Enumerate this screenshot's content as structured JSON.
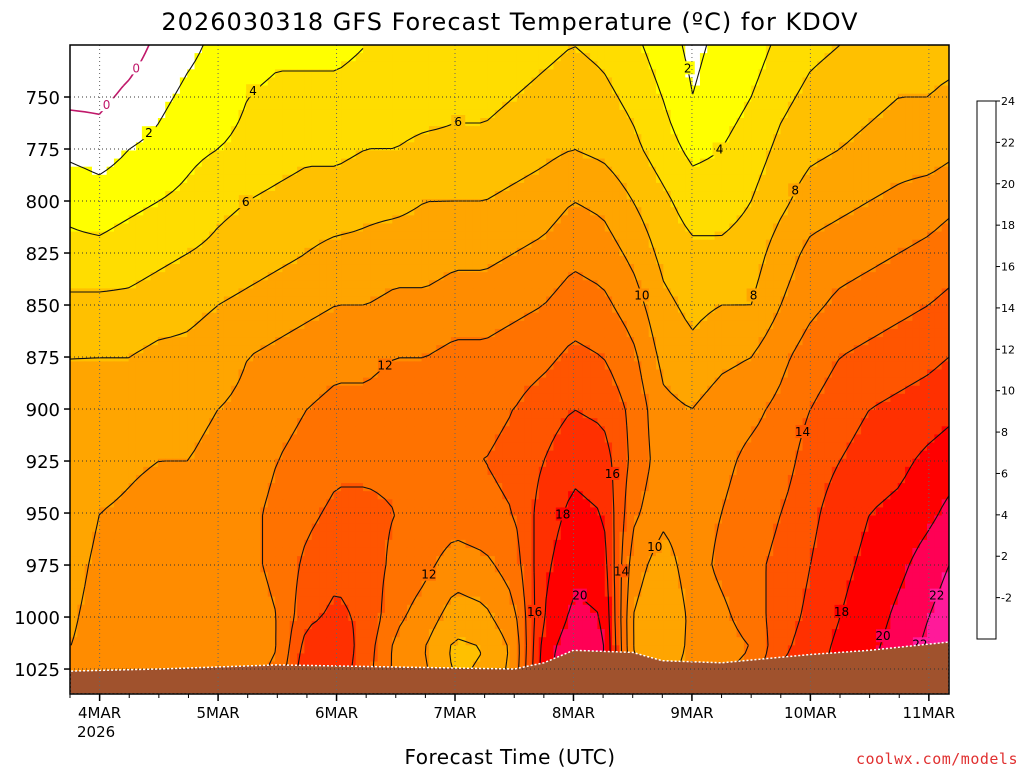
{
  "chart_data": {
    "type": "heatmap",
    "title": "2026030318 GFS Forecast Temperature (ºC) for KDOV",
    "xlabel": "Forecast Time (UTC)",
    "ylabel": "",
    "x_ticks": [
      "4MAR",
      "5MAR",
      "6MAR",
      "7MAR",
      "8MAR",
      "9MAR",
      "10MAR",
      "11MAR"
    ],
    "x_year_label": "2026",
    "x_range_days": [
      3.75,
      11.17
    ],
    "y_ticks": [
      750,
      775,
      800,
      825,
      850,
      875,
      900,
      925,
      950,
      975,
      1000,
      1025
    ],
    "y_range_hpa": [
      1037,
      725
    ],
    "colorbar": {
      "levels": [
        -2,
        2,
        4,
        6,
        8,
        10,
        12,
        14,
        16,
        18,
        20,
        22,
        24
      ],
      "colors": [
        "#55ee22",
        "#ffffff",
        "#ffff00",
        "#ffdd00",
        "#ffc000",
        "#ffa500",
        "#ff8c00",
        "#ff7200",
        "#ff5500",
        "#ff3000",
        "#ff0000",
        "#ff0055",
        "#ff1a9a"
      ]
    },
    "freezing_contour_label": "0",
    "contour_levels": [
      2,
      4,
      6,
      8,
      10,
      12,
      14,
      16,
      18,
      20,
      22
    ],
    "profiles": [
      {
        "t": 3.75,
        "T": [
          -1.5,
          -0.5,
          1.5,
          3.5,
          4.5,
          6.5,
          8.0,
          8.5,
          9.0,
          9.2,
          9.5,
          9.8,
          10.0,
          10.0
        ]
      },
      {
        "t": 4.0,
        "T": [
          -1.5,
          -0.5,
          1.0,
          3.0,
          4.5,
          6.5,
          8.0,
          9.0,
          9.5,
          10.0,
          10.3,
          10.5,
          10.5,
          10.0
        ]
      },
      {
        "t": 4.25,
        "T": [
          -1.0,
          0.5,
          2.0,
          3.5,
          5.0,
          6.5,
          8.0,
          9.0,
          9.8,
          10.2,
          10.5,
          10.8,
          10.8,
          10.5
        ]
      },
      {
        "t": 4.5,
        "T": [
          0.5,
          1.5,
          2.5,
          4.0,
          5.5,
          7.0,
          8.5,
          9.5,
          10.0,
          10.5,
          10.8,
          10.5,
          10.0,
          10.0
        ]
      },
      {
        "t": 4.75,
        "T": [
          1.5,
          2.5,
          3.5,
          4.5,
          6.0,
          7.5,
          8.5,
          9.5,
          10.0,
          10.5,
          10.5,
          10.0,
          10.0,
          10.5
        ]
      },
      {
        "t": 5.0,
        "T": [
          2.5,
          3.0,
          4.0,
          5.5,
          6.5,
          8.0,
          9.0,
          10.0,
          10.5,
          11.0,
          11.0,
          10.5,
          10.0,
          11.0
        ]
      },
      {
        "t": 5.25,
        "T": [
          3.0,
          4.0,
          4.5,
          6.0,
          7.0,
          8.5,
          10.0,
          10.5,
          11.0,
          11.5,
          11.5,
          11.0,
          10.8,
          11.5
        ]
      },
      {
        "t": 5.5,
        "T": [
          3.5,
          4.5,
          5.0,
          6.5,
          7.5,
          9.0,
          10.5,
          11.5,
          12.0,
          12.5,
          12.5,
          12.0,
          12.0,
          13.0
        ]
      },
      {
        "t": 5.75,
        "T": [
          3.5,
          4.5,
          5.5,
          7.0,
          8.0,
          9.5,
          11.0,
          12.0,
          12.5,
          13.5,
          14.5,
          15.5,
          17.0,
          18.5
        ]
      },
      {
        "t": 6.0,
        "T": [
          3.5,
          4.5,
          5.5,
          7.0,
          8.5,
          10.0,
          11.5,
          12.5,
          13.5,
          14.5,
          15.5,
          16.5,
          17.5,
          17.0
        ]
      },
      {
        "t": 6.25,
        "T": [
          4.0,
          4.8,
          6.0,
          7.5,
          8.5,
          10.0,
          11.5,
          12.5,
          13.5,
          14.5,
          15.0,
          15.5,
          15.0,
          14.5
        ]
      },
      {
        "t": 6.5,
        "T": [
          4.0,
          5.0,
          6.0,
          7.5,
          9.0,
          10.5,
          12.0,
          13.0,
          13.5,
          14.0,
          13.5,
          12.5,
          11.5,
          11.5
        ]
      },
      {
        "t": 6.75,
        "T": [
          4.0,
          5.0,
          6.5,
          8.0,
          9.0,
          10.5,
          12.0,
          13.0,
          14.0,
          13.5,
          12.5,
          11.0,
          10.0,
          10.5
        ]
      },
      {
        "t": 7.0,
        "T": [
          4.5,
          5.5,
          6.5,
          8.0,
          9.5,
          11.0,
          12.5,
          13.5,
          14.0,
          13.0,
          11.0,
          9.0,
          7.5,
          8.0
        ]
      },
      {
        "t": 7.25,
        "T": [
          5.0,
          5.5,
          6.5,
          8.0,
          9.5,
          11.0,
          12.5,
          13.5,
          14.0,
          13.5,
          11.5,
          9.5,
          8.0,
          8.5
        ]
      },
      {
        "t": 7.5,
        "T": [
          5.0,
          6.0,
          7.0,
          8.5,
          10.0,
          11.5,
          13.0,
          14.0,
          14.5,
          14.0,
          13.0,
          11.5,
          10.5,
          11.0
        ]
      },
      {
        "t": 7.75,
        "T": [
          5.5,
          6.5,
          7.5,
          9.0,
          10.5,
          12.0,
          13.5,
          15.0,
          16.0,
          17.0,
          17.5,
          18.0,
          19.0,
          19.5
        ]
      },
      {
        "t": 8.0,
        "T": [
          6.0,
          7.0,
          8.0,
          10.0,
          11.5,
          13.0,
          14.5,
          16.0,
          17.5,
          18.5,
          19.5,
          20.5,
          21.5,
          22.0
        ]
      },
      {
        "t": 8.25,
        "T": [
          5.5,
          6.5,
          7.5,
          9.5,
          11.0,
          12.5,
          14.0,
          15.5,
          17.0,
          18.0,
          19.0,
          20.0,
          20.5,
          20.0
        ]
      },
      {
        "t": 8.5,
        "T": [
          4.5,
          5.5,
          6.5,
          8.0,
          9.5,
          11.0,
          12.5,
          13.5,
          13.5,
          12.5,
          11.0,
          10.0,
          10.0,
          11.0
        ]
      },
      {
        "t": 8.75,
        "T": [
          3.0,
          4.0,
          5.0,
          6.5,
          7.5,
          8.5,
          9.5,
          10.5,
          11.0,
          10.5,
          9.0,
          8.0,
          8.5,
          10.0
        ]
      },
      {
        "t": 9.0,
        "T": [
          1.5,
          2.0,
          3.5,
          5.0,
          6.5,
          7.5,
          8.5,
          10.0,
          11.0,
          11.0,
          11.0,
          10.5,
          10.5,
          11.0
        ]
      },
      {
        "t": 9.25,
        "T": [
          2.5,
          3.0,
          4.0,
          5.0,
          6.5,
          8.0,
          9.5,
          11.0,
          11.5,
          12.0,
          12.5,
          11.5,
          11.0,
          12.0
        ]
      },
      {
        "t": 9.5,
        "T": [
          3.0,
          4.0,
          5.0,
          6.0,
          7.0,
          8.0,
          10.0,
          11.5,
          12.5,
          13.0,
          13.5,
          13.0,
          12.0,
          14.0
        ]
      },
      {
        "t": 9.75,
        "T": [
          4.5,
          5.5,
          6.5,
          7.5,
          9.0,
          10.0,
          11.5,
          12.5,
          13.0,
          14.0,
          14.5,
          15.0,
          15.5,
          17.0
        ]
      },
      {
        "t": 10.0,
        "T": [
          5.5,
          6.5,
          7.5,
          9.0,
          10.5,
          11.5,
          13.0,
          14.0,
          15.0,
          15.5,
          16.0,
          16.5,
          17.0,
          17.5
        ]
      },
      {
        "t": 10.25,
        "T": [
          6.0,
          7.0,
          8.0,
          9.5,
          11.0,
          12.5,
          14.0,
          15.0,
          16.0,
          17.0,
          17.5,
          18.0,
          18.5,
          19.0
        ]
      },
      {
        "t": 10.5,
        "T": [
          6.5,
          7.5,
          8.5,
          10.0,
          11.5,
          13.0,
          14.5,
          16.0,
          17.0,
          18.0,
          18.5,
          19.0,
          19.5,
          20.0
        ]
      },
      {
        "t": 10.75,
        "T": [
          7.0,
          8.0,
          9.0,
          10.5,
          12.0,
          13.5,
          15.0,
          16.5,
          17.5,
          18.5,
          19.5,
          20.5,
          21.0,
          21.5
        ]
      },
      {
        "t": 11.0,
        "T": [
          7.0,
          8.0,
          9.0,
          11.0,
          12.5,
          14.0,
          15.5,
          17.0,
          18.5,
          19.5,
          21.0,
          22.0,
          22.5,
          22.0
        ]
      },
      {
        "t": 11.17,
        "T": [
          7.0,
          8.5,
          9.5,
          11.5,
          13.0,
          14.5,
          16.0,
          17.5,
          19.0,
          20.5,
          22.0,
          23.0,
          23.5,
          23.0
        ]
      }
    ],
    "profile_pressures_hpa": [
      725,
      750,
      775,
      800,
      825,
      850,
      875,
      900,
      925,
      950,
      975,
      1000,
      1015,
      1037
    ],
    "surface_pressure_hpa": [
      {
        "t": 3.75,
        "p": 1026
      },
      {
        "t": 4.5,
        "p": 1025
      },
      {
        "t": 5.5,
        "p": 1023
      },
      {
        "t": 6.5,
        "p": 1024
      },
      {
        "t": 7.5,
        "p": 1025
      },
      {
        "t": 7.75,
        "p": 1022
      },
      {
        "t": 8.0,
        "p": 1016
      },
      {
        "t": 8.5,
        "p": 1017
      },
      {
        "t": 8.75,
        "p": 1021
      },
      {
        "t": 9.25,
        "p": 1022
      },
      {
        "t": 10.0,
        "p": 1018
      },
      {
        "t": 10.5,
        "p": 1016
      },
      {
        "t": 11.17,
        "p": 1012
      }
    ]
  },
  "credit": "coolwx.com/models"
}
